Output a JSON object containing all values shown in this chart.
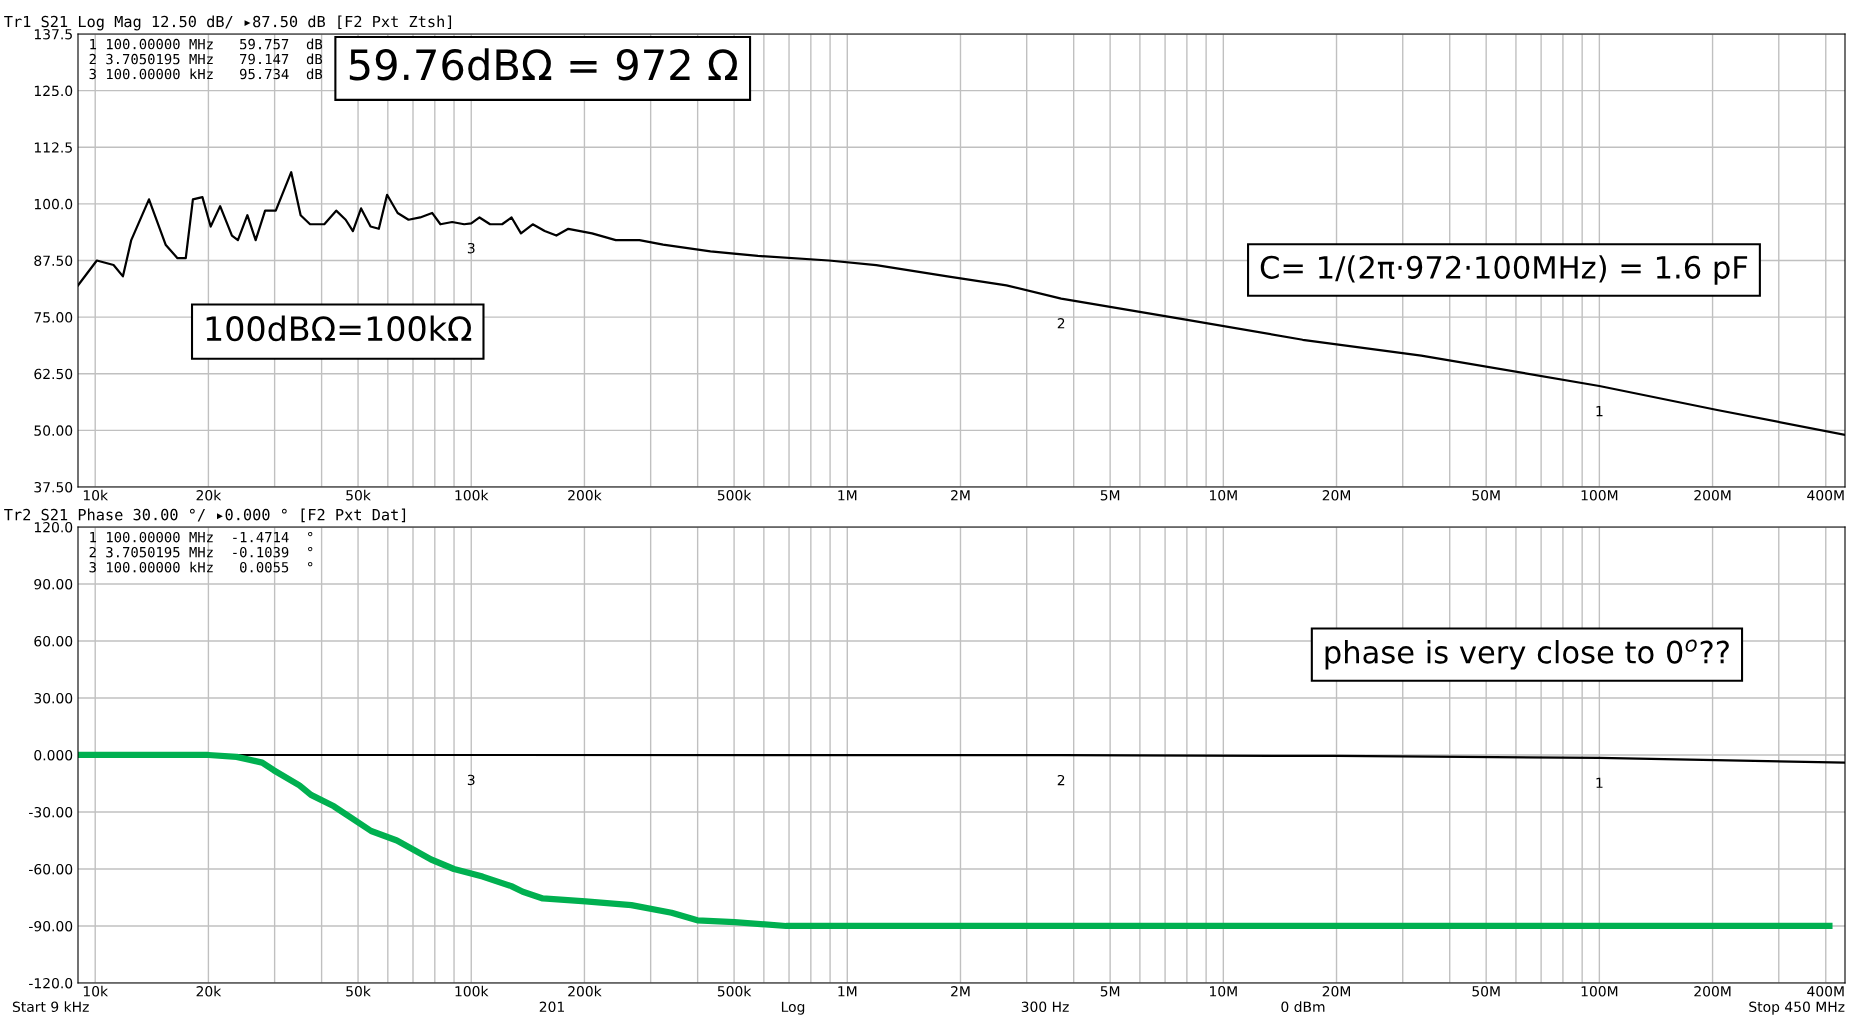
{
  "chart_data": [
    {
      "type": "line",
      "title": "Tr1 S21 Log Mag 12.50 dB/ ▸87.50 dB [F2 Pxt Ztsh]",
      "series": [
        {
          "color": "#000000",
          "x": [
            9000,
            10100,
            11190,
            11850,
            12470,
            13900,
            15390,
            16550,
            17410,
            18190,
            19280,
            20280,
            21490,
            23100,
            23960,
            25390,
            26710,
            28300,
            30210,
            33210,
            35180,
            37270,
            40670,
            43740,
            46350,
            48450,
            50940,
            53980,
            56790,
            59730,
            63720,
            68110,
            73150,
            78700,
            82800,
            88970,
            95760,
            100000,
            105200,
            112200,
            120800,
            128000,
            135600,
            145700,
            156800,
            168400,
            181200,
            209500,
            242300,
            280100,
            323700,
            432700,
            578400,
            893800,
            1194000,
            1846000,
            2650000,
            3705000,
            7874000,
            16260000,
            33600000,
            100000000,
            205700000,
            450000000
          ],
          "values": [
            82,
            87.5,
            86.5,
            84,
            92,
            101,
            91,
            88,
            88,
            101,
            101.5,
            95,
            99.5,
            93,
            92,
            97.5,
            92,
            98.5,
            98.5,
            107,
            97.5,
            95.5,
            95.5,
            98.5,
            96.5,
            94,
            99,
            95,
            94.5,
            102,
            98,
            96.5,
            97,
            98,
            95.5,
            96,
            95.5,
            95.7,
            97,
            95.5,
            95.5,
            97,
            93.5,
            95.5,
            94,
            93,
            94.5,
            93.5,
            92,
            92,
            91,
            89.5,
            88.5,
            87.5,
            86.5,
            84,
            82,
            79.1,
            74.5,
            70,
            66.5,
            59.8,
            54.5,
            49
          ]
        }
      ],
      "xlim": [
        9000,
        450000000
      ],
      "ylim": [
        37.5,
        137.5
      ],
      "log": "x",
      "xticks": [
        {
          "value": 10000,
          "label": "10k"
        },
        {
          "value": 20000,
          "label": "20k"
        },
        {
          "value": 30000,
          "label": null
        },
        {
          "value": 40000,
          "label": null
        },
        {
          "value": 50000,
          "label": "50k"
        },
        {
          "value": 60000,
          "label": null
        },
        {
          "value": 70000,
          "label": null
        },
        {
          "value": 80000,
          "label": null
        },
        {
          "value": 90000,
          "label": null
        },
        {
          "value": 100000,
          "label": "100k"
        },
        {
          "value": 200000,
          "label": "200k"
        },
        {
          "value": 300000,
          "label": null
        },
        {
          "value": 400000,
          "label": null
        },
        {
          "value": 500000,
          "label": "500k"
        },
        {
          "value": 600000,
          "label": null
        },
        {
          "value": 700000,
          "label": null
        },
        {
          "value": 800000,
          "label": null
        },
        {
          "value": 900000,
          "label": null
        },
        {
          "value": 1000000,
          "label": "1M"
        },
        {
          "value": 2000000,
          "label": "2M"
        },
        {
          "value": 3000000,
          "label": null
        },
        {
          "value": 4000000,
          "label": null
        },
        {
          "value": 5000000,
          "label": "5M"
        },
        {
          "value": 6000000,
          "label": null
        },
        {
          "value": 7000000,
          "label": null
        },
        {
          "value": 8000000,
          "label": null
        },
        {
          "value": 9000000,
          "label": null
        },
        {
          "value": 10000000,
          "label": "10M"
        },
        {
          "value": 20000000,
          "label": "20M"
        },
        {
          "value": 30000000,
          "label": null
        },
        {
          "value": 40000000,
          "label": null
        },
        {
          "value": 50000000,
          "label": "50M"
        },
        {
          "value": 60000000,
          "label": null
        },
        {
          "value": 70000000,
          "label": null
        },
        {
          "value": 80000000,
          "label": null
        },
        {
          "value": 90000000,
          "label": null
        },
        {
          "value": 100000000,
          "label": "100M"
        },
        {
          "value": 200000000,
          "label": "200M"
        },
        {
          "value": 300000000,
          "label": null
        },
        {
          "value": 400000000,
          "label": "400M"
        }
      ],
      "yticks": [
        {
          "value": 37.5,
          "label": "37.50"
        },
        {
          "value": 50,
          "label": "50.00"
        },
        {
          "value": 62.5,
          "label": "62.50"
        },
        {
          "value": 75,
          "label": "75.00"
        },
        {
          "value": 87.5,
          "label": "87.50"
        },
        {
          "value": 100,
          "label": "100.0"
        },
        {
          "value": 112.5,
          "label": "112.5"
        },
        {
          "value": 125,
          "label": "125.0"
        },
        {
          "value": 137.5,
          "label": "137.5"
        }
      ],
      "grid": true,
      "line_style": "solid",
      "annotations": [
        "1 100.00000 MHz   59.757  dB",
        "2 3.7050195 MHz   79.147  dB",
        "3 100.00000 kHz   95.734  dB",
        "59.76dBΩ = 972 Ω",
        "100dBΩ=100kΩ",
        "C= 1/(2π·972·100MHz) = 1.6 pF",
        {
          "text": "1",
          "x": 100000000,
          "y": 59.757
        },
        {
          "text": "2",
          "x": 3705000,
          "y": 79.147
        },
        {
          "text": "3",
          "x": 100000,
          "y": 95.734
        }
      ]
    },
    {
      "type": "line",
      "title": "Tr2 S21 Phase 30.00 °/ ▸0.000 ° [F2 Pxt Dat]",
      "series": [
        {
          "color": "#000000",
          "x": [
            9000,
            100000,
            3705000,
            20000000,
            100000000,
            450000000
          ],
          "values": [
            0,
            0.0055,
            -0.1039,
            -0.5,
            -1.4714,
            -4
          ]
        },
        {
          "color": "#00b050",
          "x": [
            9000,
            20000,
            23770,
            27800,
            29830,
            34920,
            37480,
            43130,
            46240,
            54170,
            63430,
            70460,
            78220,
            89950,
            107200,
            127800,
            137100,
            155000,
            201400,
            266600,
            341000,
            399300,
            501200,
            687500,
            409000000
          ],
          "values": [
            0,
            0,
            -1,
            -4,
            -8,
            -16,
            -21,
            -27,
            -31,
            -40,
            -45,
            -50,
            -55,
            -60,
            -64,
            -69,
            -72,
            -75.5,
            -77,
            -79,
            -83,
            -87,
            -88,
            -90,
            -90
          ]
        }
      ],
      "xlim": [
        9000,
        450000000
      ],
      "ylim": [
        -120,
        120
      ],
      "log": "x",
      "xticks": [
        {
          "value": 10000,
          "label": "10k"
        },
        {
          "value": 20000,
          "label": "20k"
        },
        {
          "value": 30000,
          "label": null
        },
        {
          "value": 40000,
          "label": null
        },
        {
          "value": 50000,
          "label": "50k"
        },
        {
          "value": 60000,
          "label": null
        },
        {
          "value": 70000,
          "label": null
        },
        {
          "value": 80000,
          "label": null
        },
        {
          "value": 90000,
          "label": null
        },
        {
          "value": 100000,
          "label": "100k"
        },
        {
          "value": 200000,
          "label": "200k"
        },
        {
          "value": 300000,
          "label": null
        },
        {
          "value": 400000,
          "label": null
        },
        {
          "value": 500000,
          "label": "500k"
        },
        {
          "value": 600000,
          "label": null
        },
        {
          "value": 700000,
          "label": null
        },
        {
          "value": 800000,
          "label": null
        },
        {
          "value": 900000,
          "label": null
        },
        {
          "value": 1000000,
          "label": "1M"
        },
        {
          "value": 2000000,
          "label": "2M"
        },
        {
          "value": 3000000,
          "label": null
        },
        {
          "value": 4000000,
          "label": null
        },
        {
          "value": 5000000,
          "label": "5M"
        },
        {
          "value": 6000000,
          "label": null
        },
        {
          "value": 7000000,
          "label": null
        },
        {
          "value": 8000000,
          "label": null
        },
        {
          "value": 9000000,
          "label": null
        },
        {
          "value": 10000000,
          "label": "10M"
        },
        {
          "value": 20000000,
          "label": "20M"
        },
        {
          "value": 30000000,
          "label": null
        },
        {
          "value": 40000000,
          "label": null
        },
        {
          "value": 50000000,
          "label": "50M"
        },
        {
          "value": 60000000,
          "label": null
        },
        {
          "value": 70000000,
          "label": null
        },
        {
          "value": 80000000,
          "label": null
        },
        {
          "value": 90000000,
          "label": null
        },
        {
          "value": 100000000,
          "label": "100M"
        },
        {
          "value": 200000000,
          "label": "200M"
        },
        {
          "value": 300000000,
          "label": null
        },
        {
          "value": 400000000,
          "label": "400M"
        }
      ],
      "yticks": [
        {
          "value": -120,
          "label": "-120.0"
        },
        {
          "value": -90,
          "label": "-90.00"
        },
        {
          "value": -60,
          "label": "-60.00"
        },
        {
          "value": -30,
          "label": "-30.00"
        },
        {
          "value": 0,
          "label": "0.000"
        },
        {
          "value": 30,
          "label": "30.00"
        },
        {
          "value": 60,
          "label": "60.00"
        },
        {
          "value": 90,
          "label": "90.00"
        },
        {
          "value": 120,
          "label": "120.0"
        }
      ],
      "grid": true,
      "line_style": "solid",
      "annotations": [
        "1 100.00000 MHz  -1.4714  °",
        "2 3.7050195 MHz  -0.1039  °",
        "3 100.00000 kHz   0.0055  °",
        "phase is very close to 0$^{o}$??",
        {
          "text": "1",
          "x": 100000000,
          "y": -1.4714
        },
        {
          "text": "2",
          "x": 3705000,
          "y": -0.1039
        },
        {
          "text": "3",
          "x": 100000,
          "y": 0.0055
        },
        "Start 9 kHz",
        "201",
        "Log",
        "300 Hz",
        "0 dBm",
        "Stop 450 MHz"
      ]
    }
  ]
}
